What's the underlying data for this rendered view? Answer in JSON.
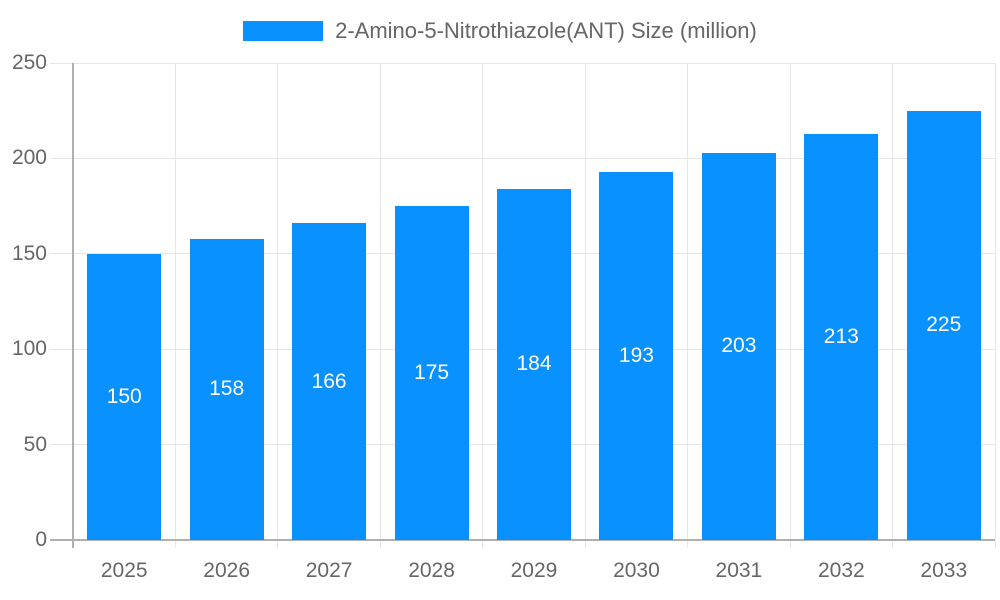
{
  "legend": {
    "label": "2-Amino-5-Nitrothiazole(ANT) Size (million)"
  },
  "colors": {
    "bar": "#0991ff",
    "bar_label": "#ffffff",
    "axis_text": "#666666",
    "grid": "#e6e6e6",
    "axis_line": "#b0b0b0"
  },
  "chart_data": {
    "type": "bar",
    "title": "2-Amino-5-Nitrothiazole(ANT) Size (million)",
    "categories": [
      "2025",
      "2026",
      "2027",
      "2028",
      "2029",
      "2030",
      "2031",
      "2032",
      "2033"
    ],
    "values": [
      150,
      158,
      166,
      175,
      184,
      193,
      203,
      213,
      225
    ],
    "series": [
      {
        "name": "2-Amino-5-Nitrothiazole(ANT) Size (million)",
        "values": [
          150,
          158,
          166,
          175,
          184,
          193,
          203,
          213,
          225
        ]
      }
    ],
    "xlabel": "",
    "ylabel": "",
    "ylim": [
      0,
      250
    ],
    "yticks": [
      0,
      50,
      100,
      150,
      200,
      250
    ],
    "grid": true,
    "legend_position": "top-center",
    "value_labels": "inside-center"
  }
}
